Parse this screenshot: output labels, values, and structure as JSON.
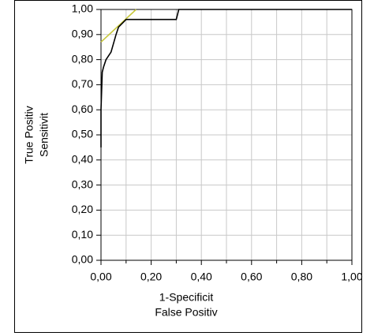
{
  "chart_data": {
    "type": "line",
    "x_label": [
      "1-Specificit",
      "False Positiv"
    ],
    "y_label": [
      "True Positiv",
      "Sensitivit"
    ],
    "series": [
      {
        "color": "#000000",
        "x": [
          0,
          0,
          0.005,
          0.01,
          0.02,
          0.04,
          0.06,
          0.07,
          0.1,
          0.3,
          0.31,
          1
        ],
        "values": [
          0.45,
          0.6,
          0.75,
          0.77,
          0.8,
          0.83,
          0.9,
          0.93,
          0.96,
          0.96,
          1,
          1
        ]
      },
      {
        "color": "#c8c83c",
        "x": [
          0,
          0.14
        ],
        "values": [
          0.87,
          1
        ]
      }
    ],
    "xlim": [
      0,
      1
    ],
    "ylim": [
      0,
      1
    ],
    "xticks": [
      {
        "value": 0,
        "label": "0,00"
      },
      {
        "value": 0.2,
        "label": "0,20"
      },
      {
        "value": 0.4,
        "label": "0,40"
      },
      {
        "value": 0.6,
        "label": "0,60"
      },
      {
        "value": 0.8,
        "label": "0,80"
      },
      {
        "value": 1,
        "label": "1,00"
      }
    ],
    "x_minor_ticks": [
      0.1,
      0.3,
      0.5,
      0.7,
      0.9
    ],
    "yticks": [
      {
        "value": 0,
        "label": "0,00"
      },
      {
        "value": 0.1,
        "label": "0,10"
      },
      {
        "value": 0.2,
        "label": "0,20"
      },
      {
        "value": 0.3,
        "label": "0,30"
      },
      {
        "value": 0.4,
        "label": "0,40"
      },
      {
        "value": 0.5,
        "label": "0,50"
      },
      {
        "value": 0.6,
        "label": "0,60"
      },
      {
        "value": 0.7,
        "label": "0,70"
      },
      {
        "value": 0.8,
        "label": "0,80"
      },
      {
        "value": 0.9,
        "label": "0,90"
      },
      {
        "value": 1,
        "label": "1,00"
      }
    ],
    "grid": true
  }
}
